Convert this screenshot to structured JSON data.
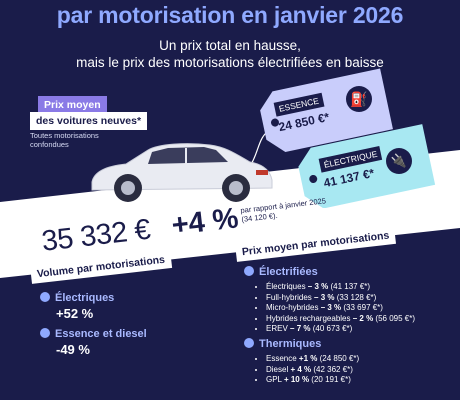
{
  "header": {
    "title_line": "par motorisation en janvier 2026",
    "subtitle_line1": "Un prix total en hausse,",
    "subtitle_line2": "mais le prix des motorisations électrifiées en baisse"
  },
  "avg_box": {
    "label1": "Prix moyen",
    "label2": "des voitures neuves*",
    "note1": "Toutes motorisations",
    "note2": "confondues"
  },
  "tags": {
    "essence_label": "ESSENCE",
    "essence_value": "24 850 €*",
    "electrique_label": "ÉLECTRIQUE",
    "electrique_value": "41 137 €*"
  },
  "headline": {
    "price": "35 332 €",
    "change": "+4 %",
    "ref1": "par rapport à janvier 2025",
    "ref2": "(34 120 €)."
  },
  "volume": {
    "heading": "Volume par motorisations",
    "electric_label": "Électriques",
    "electric_value": "+52 %",
    "ice_label": "Essence et diesel",
    "ice_value": "-49 %"
  },
  "prices": {
    "heading": "Prix moyen par motorisations",
    "electrified_label": "Électrifiées",
    "electrified_items": [
      {
        "name": "Électriques",
        "pct": "– 3 %",
        "price": "(41 137 €*)"
      },
      {
        "name": "Full-hybrides",
        "pct": "– 3 %",
        "price": "(33 128 €*)"
      },
      {
        "name": "Micro-hybrides",
        "pct": "– 3 %",
        "price": "(33 697 €*)"
      },
      {
        "name": "Hybrides rechargeables",
        "pct": "– 2 %",
        "price": "(56 095 €*)"
      },
      {
        "name": "EREV",
        "pct": "– 7 %",
        "price": "(40 673 €*)"
      }
    ],
    "thermal_label": "Thermiques",
    "thermal_items": [
      {
        "name": "Essence",
        "pct": "+1 %",
        "price": "(24 850 €*)"
      },
      {
        "name": "Diesel",
        "pct": "+ 4 %",
        "price": "(42 362 €*)"
      },
      {
        "name": "GPL",
        "pct": "+ 10 %",
        "price": "(20 191 €*)"
      }
    ]
  },
  "colors": {
    "navy": "#1a1c4a",
    "accent_blue": "#8fa9ff",
    "tag_violet": "#8a7ae6",
    "tag_essence": "#c9cdfb",
    "tag_electrique": "#a8e8f2"
  }
}
